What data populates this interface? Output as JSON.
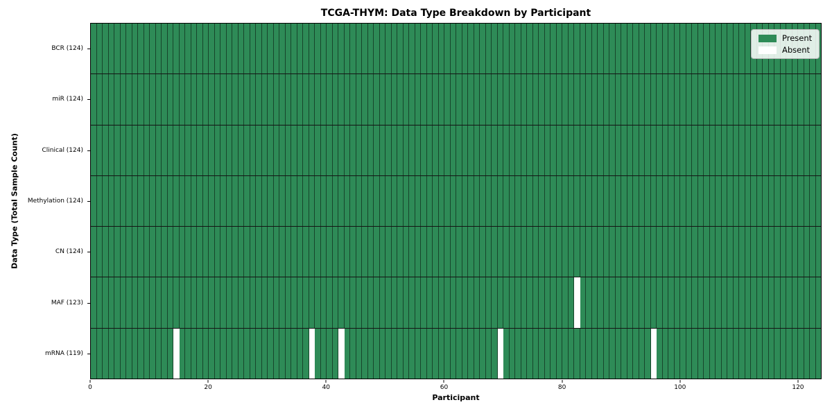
{
  "chart_data": {
    "type": "heatmap",
    "title": "TCGA-THYM: Data Type Breakdown by Participant",
    "xlabel": "Participant",
    "ylabel": "Data Type (Total Sample Count)",
    "xlim": [
      0,
      124
    ],
    "x_ticks": [
      0,
      20,
      40,
      60,
      80,
      100,
      120
    ],
    "n_participants": 124,
    "categories": [
      "BCR (124)",
      "miR (124)",
      "Clinical (124)",
      "Methylation (124)",
      "CN (124)",
      "MAF (123)",
      "mRNA (119)"
    ],
    "rows": [
      {
        "data_type": "BCR",
        "label": "BCR (124)",
        "present_count": 124,
        "total": 124,
        "absent_participant_indices": []
      },
      {
        "data_type": "miR",
        "label": "miR (124)",
        "present_count": 124,
        "total": 124,
        "absent_participant_indices": []
      },
      {
        "data_type": "Clinical",
        "label": "Clinical (124)",
        "present_count": 124,
        "total": 124,
        "absent_participant_indices": []
      },
      {
        "data_type": "Methylation",
        "label": "Methylation (124)",
        "present_count": 124,
        "total": 124,
        "absent_participant_indices": []
      },
      {
        "data_type": "CN",
        "label": "CN (124)",
        "present_count": 124,
        "total": 124,
        "absent_participant_indices": []
      },
      {
        "data_type": "MAF",
        "label": "MAF (123)",
        "present_count": 123,
        "total": 124,
        "absent_participant_indices": [
          82
        ]
      },
      {
        "data_type": "mRNA",
        "label": "mRNA (119)",
        "present_count": 119,
        "total": 124,
        "absent_participant_indices": [
          14,
          37,
          42,
          69,
          95
        ]
      }
    ],
    "legend": {
      "position": "upper right",
      "entries": [
        {
          "label": "Present",
          "color": "#2e8b57"
        },
        {
          "label": "Absent",
          "color": "#ffffff"
        }
      ]
    },
    "colors": {
      "present": "#2e8b57",
      "absent": "#ffffff",
      "cell_edge": "rgba(0,0,0,0.5)",
      "row_divider": "#141414",
      "spine": "#000000"
    }
  }
}
